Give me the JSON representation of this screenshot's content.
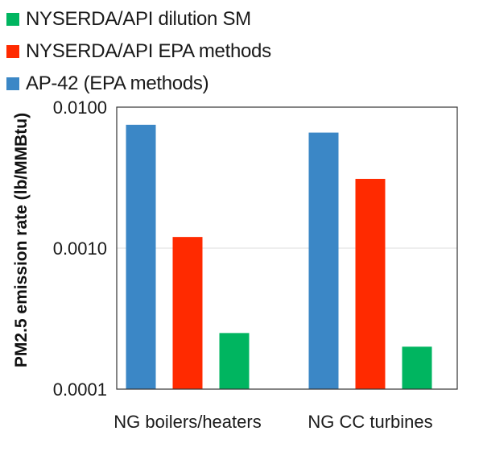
{
  "chart_data": {
    "type": "bar",
    "title": "",
    "xlabel": "",
    "ylabel": "PM2.5 emission rate (lb/MMBtu)",
    "yscale": "log",
    "ylim": [
      0.0001,
      0.01
    ],
    "yticks": [
      "0.0100",
      "0.0010",
      "0.0001"
    ],
    "ytick_values": [
      0.01,
      0.001,
      0.0001
    ],
    "grid": true,
    "legend_placement": "top",
    "categories": [
      "NG boilers/heaters",
      "NG CC turbines"
    ],
    "series": [
      {
        "name": "AP-42 (EPA methods)",
        "color": "#3b87c6",
        "values": [
          0.0075,
          0.0066
        ]
      },
      {
        "name": "NYSERDA/API EPA methods",
        "color": "#ff2a00",
        "values": [
          0.0012,
          0.0031
        ]
      },
      {
        "name": "NYSERDA/API dilution SM",
        "color": "#00b560",
        "values": [
          0.00025,
          0.0002
        ]
      }
    ]
  },
  "legend": [
    {
      "label": "NYSERDA/API dilution SM",
      "color": "#00b560"
    },
    {
      "label": "NYSERDA/API EPA methods",
      "color": "#ff2a00"
    },
    {
      "label": "AP-42 (EPA methods)",
      "color": "#3b87c6"
    }
  ]
}
